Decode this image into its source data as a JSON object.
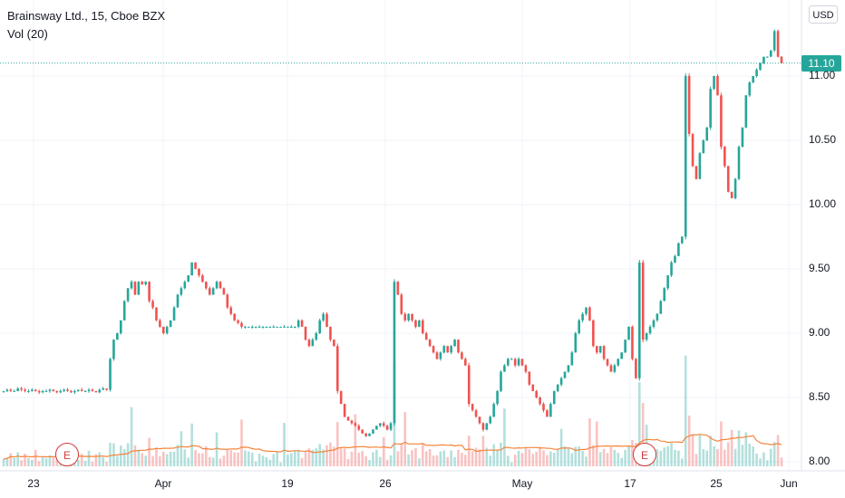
{
  "header": {
    "title": "Brainsway Ltd., 15, Cboe BZX",
    "volume_label": "Vol (20)",
    "currency": "USD"
  },
  "last_price": {
    "value": "11.10",
    "color": "#26a69a"
  },
  "colors": {
    "up": "#26a69a",
    "down": "#ef5350",
    "vol_ma": "#f5843a",
    "grid": "#f0f3fa"
  },
  "earnings": [
    {
      "label": "E",
      "x_date": "Mar 26"
    },
    {
      "label": "E",
      "x_date": "May 17"
    }
  ],
  "chart_data": {
    "type": "candlestick",
    "y_ticks": [
      "11.00",
      "10.50",
      "10.00",
      "9.50",
      "9.00",
      "8.50",
      "8.00"
    ],
    "y_values": [
      11.0,
      10.5,
      10.0,
      9.5,
      9.0,
      8.5,
      8.0
    ],
    "ylim": [
      7.98,
      11.53
    ],
    "x_ticks": [
      "23",
      "Apr",
      "19",
      "26",
      "May",
      "17",
      "25",
      "Jun"
    ],
    "price_path": [
      8.55,
      8.56,
      8.55,
      8.55,
      8.57,
      8.56,
      8.55,
      8.55,
      8.56,
      8.55,
      8.54,
      8.55,
      8.55,
      8.56,
      8.55,
      8.54,
      8.55,
      8.56,
      8.55,
      8.54,
      8.55,
      8.56,
      8.55,
      8.55,
      8.56,
      8.55,
      8.54,
      8.56,
      8.57,
      8.56,
      8.8,
      8.95,
      9.0,
      9.1,
      9.25,
      9.35,
      9.4,
      9.3,
      9.4,
      9.38,
      9.4,
      9.25,
      9.2,
      9.1,
      9.05,
      9.0,
      9.05,
      9.1,
      9.2,
      9.3,
      9.35,
      9.4,
      9.45,
      9.55,
      9.5,
      9.45,
      9.4,
      9.35,
      9.3,
      9.35,
      9.4,
      9.35,
      9.3,
      9.2,
      9.15,
      9.1,
      9.08,
      9.05,
      9.05,
      9.05,
      9.05,
      9.05,
      9.05,
      9.05,
      9.05,
      9.05,
      9.05,
      9.05,
      9.05,
      9.05,
      9.05,
      9.05,
      9.05,
      9.1,
      9.05,
      8.95,
      8.9,
      8.95,
      9.0,
      9.1,
      9.15,
      9.05,
      8.95,
      8.9,
      8.55,
      8.45,
      8.35,
      8.32,
      8.3,
      8.28,
      8.25,
      8.22,
      8.2,
      8.22,
      8.25,
      8.28,
      8.3,
      8.28,
      8.25,
      8.3,
      9.4,
      9.3,
      9.15,
      9.1,
      9.15,
      9.1,
      9.05,
      9.1,
      9.0,
      8.95,
      8.9,
      8.85,
      8.8,
      8.85,
      8.9,
      8.85,
      8.9,
      8.95,
      8.85,
      8.8,
      8.75,
      8.45,
      8.4,
      8.35,
      8.3,
      8.25,
      8.3,
      8.35,
      8.45,
      8.55,
      8.7,
      8.75,
      8.8,
      8.8,
      8.75,
      8.8,
      8.75,
      8.7,
      8.6,
      8.55,
      8.5,
      8.45,
      8.4,
      8.35,
      8.45,
      8.55,
      8.6,
      8.65,
      8.7,
      8.75,
      8.85,
      9.0,
      9.1,
      9.15,
      9.2,
      9.1,
      8.9,
      8.85,
      8.9,
      8.8,
      8.75,
      8.7,
      8.75,
      8.8,
      8.85,
      8.95,
      9.05,
      8.8,
      8.65,
      9.55,
      8.95,
      9.0,
      9.05,
      9.1,
      9.15,
      9.25,
      9.35,
      9.45,
      9.55,
      9.6,
      9.7,
      9.75,
      11.0,
      10.55,
      10.3,
      10.2,
      10.4,
      10.5,
      10.6,
      10.9,
      11.0,
      10.85,
      10.45,
      10.3,
      10.1,
      10.05,
      10.2,
      10.45,
      10.6,
      10.85,
      10.95,
      11.0,
      11.05,
      11.1,
      11.15,
      11.15,
      11.2,
      11.35,
      11.15,
      11.1
    ],
    "volume_ma_series": {
      "name": "Vol (20)"
    }
  }
}
